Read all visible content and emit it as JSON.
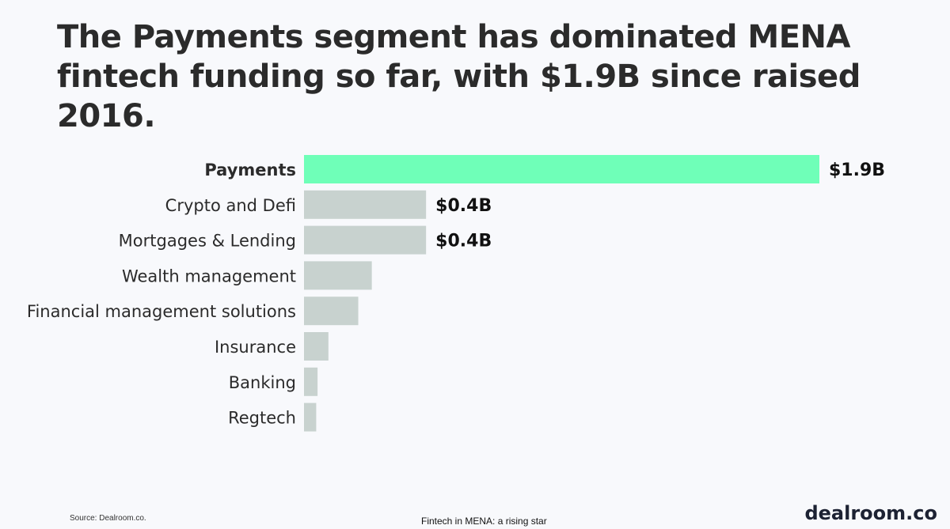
{
  "title": "The Payments segment has dominated MENA fintech funding so far, with $1.9B since raised 2016.",
  "source": "Source: Dealroom.co.",
  "footer_title": "Fintech in MENA: a rising star",
  "logo": "dealroom.co",
  "colors": {
    "highlight": "#6fffb8",
    "bar": "#c8d2cf"
  },
  "chart_data": {
    "type": "bar",
    "orientation": "horizontal",
    "unit": "$B",
    "categories": [
      "Payments",
      "Crypto and Defi",
      "Mortgages & Lending",
      "Wealth management",
      "Financial management solutions",
      "Insurance",
      "Banking",
      "Regtech"
    ],
    "values": [
      1.9,
      0.45,
      0.45,
      0.25,
      0.2,
      0.09,
      0.05,
      0.045
    ],
    "value_labels": [
      "$1.9B",
      "$0.4B",
      "$0.4B",
      "",
      "",
      "",
      "",
      ""
    ],
    "highlight_category": "Payments",
    "xlim": [
      0,
      1.9
    ],
    "grid": false,
    "legend": "none"
  }
}
